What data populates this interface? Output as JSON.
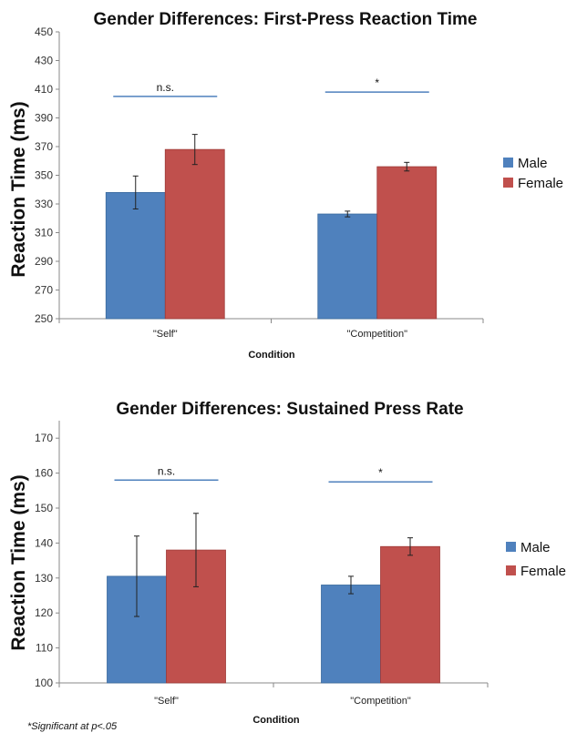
{
  "chart_data": [
    {
      "type": "bar",
      "title": "Gender Differences: First-Press Reaction Time",
      "xlabel": "Condition",
      "ylabel": "Reaction Time (ms)",
      "categories": [
        "\"Self\"",
        "\"Competition\""
      ],
      "ylim": [
        250,
        450
      ],
      "yticks": [
        250,
        270,
        290,
        310,
        330,
        350,
        370,
        390,
        410,
        430,
        450
      ],
      "series": [
        {
          "name": "Male",
          "color": "#4F81BD",
          "values": [
            338,
            323
          ],
          "errors": [
            11.5,
            2
          ]
        },
        {
          "name": "Female",
          "color": "#C0504D",
          "values": [
            368,
            356
          ],
          "errors": [
            10.5,
            3
          ]
        }
      ],
      "significance": [
        {
          "label": "n.s.",
          "y": 405
        },
        {
          "label": "*",
          "y": 408
        }
      ],
      "legend_position": "right"
    },
    {
      "type": "bar",
      "title": "Gender Differences: Sustained Press Rate",
      "xlabel": "Condition",
      "ylabel": "Reaction Time (ms)",
      "categories": [
        "\"Self\"",
        "\"Competition\""
      ],
      "ylim": [
        100,
        175
      ],
      "yticks": [
        100,
        110,
        120,
        130,
        140,
        150,
        160,
        170
      ],
      "series": [
        {
          "name": "Male",
          "color": "#4F81BD",
          "values": [
            130.5,
            128
          ],
          "errors": [
            11.5,
            2.5
          ]
        },
        {
          "name": "Female",
          "color": "#C0504D",
          "values": [
            138,
            139
          ],
          "errors": [
            10.5,
            2.5
          ]
        }
      ],
      "significance": [
        {
          "label": "n.s.",
          "y": 158
        },
        {
          "label": "*",
          "y": 157.5
        }
      ],
      "legend_position": "right"
    }
  ],
  "footnote": "*Significant at p<.05"
}
